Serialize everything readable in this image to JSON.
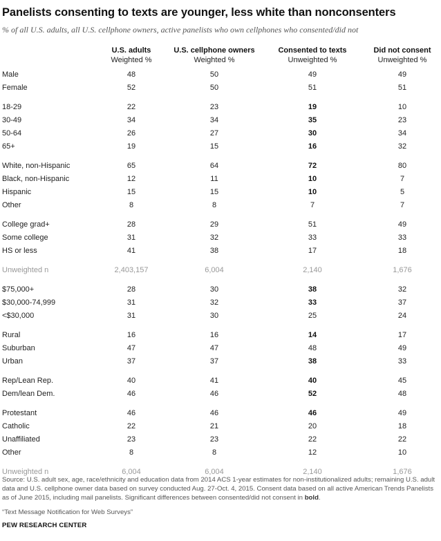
{
  "title": "Panelists consenting to texts are younger, less white than nonconsenters",
  "subtitle": "% of all U.S. adults, all U.S. cellphone owners, active panelists who own cellphones who consented/did not",
  "columns": [
    {
      "label": "U.S. adults",
      "sub": "Weighted %"
    },
    {
      "label": "U.S. cellphone owners",
      "sub": "Weighted %"
    },
    {
      "label": "Consented to texts",
      "sub": "Unweighted %"
    },
    {
      "label": "Did not consent",
      "sub": "Unweighted %"
    }
  ],
  "groups": [
    {
      "rows": [
        {
          "label": "Male",
          "values": [
            "48",
            "50",
            "49",
            "49"
          ],
          "bold": false
        },
        {
          "label": "Female",
          "values": [
            "52",
            "50",
            "51",
            "51"
          ],
          "bold": false
        }
      ]
    },
    {
      "rows": [
        {
          "label": "18-29",
          "values": [
            "22",
            "23",
            "19",
            "10"
          ],
          "bold": true
        },
        {
          "label": "30-49",
          "values": [
            "34",
            "34",
            "35",
            "23"
          ],
          "bold": true
        },
        {
          "label": "50-64",
          "values": [
            "26",
            "27",
            "30",
            "34"
          ],
          "bold": true
        },
        {
          "label": "65+",
          "values": [
            "19",
            "15",
            "16",
            "32"
          ],
          "bold": true
        }
      ]
    },
    {
      "rows": [
        {
          "label": "White, non-Hispanic",
          "values": [
            "65",
            "64",
            "72",
            "80"
          ],
          "bold": true
        },
        {
          "label": "Black, non-Hispanic",
          "values": [
            "12",
            "11",
            "10",
            "7"
          ],
          "bold": true
        },
        {
          "label": "Hispanic",
          "values": [
            "15",
            "15",
            "10",
            "5"
          ],
          "bold": true
        },
        {
          "label": "Other",
          "values": [
            "8",
            "8",
            "7",
            "7"
          ],
          "bold": false
        }
      ]
    },
    {
      "rows": [
        {
          "label": "College grad+",
          "values": [
            "28",
            "29",
            "51",
            "49"
          ],
          "bold": false
        },
        {
          "label": "Some college",
          "values": [
            "31",
            "32",
            "33",
            "33"
          ],
          "bold": false
        },
        {
          "label": "HS or less",
          "values": [
            "41",
            "38",
            "17",
            "18"
          ],
          "bold": false
        }
      ]
    },
    {
      "n": true,
      "rows": [
        {
          "label": "Unweighted n",
          "values": [
            "2,403,157",
            "6,004",
            "2,140",
            "1,676"
          ],
          "bold": false
        }
      ]
    },
    {
      "rows": [
        {
          "label": "$75,000+",
          "values": [
            "28",
            "30",
            "38",
            "32"
          ],
          "bold": true
        },
        {
          "label": "$30,000-74,999",
          "values": [
            "31",
            "32",
            "33",
            "37"
          ],
          "bold": true
        },
        {
          "label": "<$30,000",
          "values": [
            "31",
            "30",
            "25",
            "24"
          ],
          "bold": false
        }
      ]
    },
    {
      "rows": [
        {
          "label": "Rural",
          "values": [
            "16",
            "16",
            "14",
            "17"
          ],
          "bold": true
        },
        {
          "label": "Suburban",
          "values": [
            "47",
            "47",
            "48",
            "49"
          ],
          "bold": false
        },
        {
          "label": "Urban",
          "values": [
            "37",
            "37",
            "38",
            "33"
          ],
          "bold": true
        }
      ]
    },
    {
      "rows": [
        {
          "label": "Rep/Lean Rep.",
          "values": [
            "40",
            "41",
            "40",
            "45"
          ],
          "bold": true
        },
        {
          "label": "Dem/lean Dem.",
          "values": [
            "46",
            "46",
            "52",
            "48"
          ],
          "bold": true
        }
      ]
    },
    {
      "rows": [
        {
          "label": "Protestant",
          "values": [
            "46",
            "46",
            "46",
            "49"
          ],
          "bold": true
        },
        {
          "label": "Catholic",
          "values": [
            "22",
            "21",
            "20",
            "18"
          ],
          "bold": false
        },
        {
          "label": "Unaffiliated",
          "values": [
            "23",
            "23",
            "22",
            "22"
          ],
          "bold": false
        },
        {
          "label": "Other",
          "values": [
            "8",
            "8",
            "12",
            "10"
          ],
          "bold": false
        }
      ]
    },
    {
      "n": true,
      "rows": [
        {
          "label": "Unweighted n",
          "values": [
            "6,004",
            "6,004",
            "2,140",
            "1,676"
          ],
          "bold": false
        }
      ]
    }
  ],
  "source_text": "Source: U.S. adult sex, age, race/ethnicity and education data from 2014 ACS 1-year estimates for non-institutionalized adults; remaining U.S. adult data and U.S. cellphone owner data based on survey conducted Aug. 27-Oct. 4, 2015. Consent data based on all active American Trends Panelists as of June 2015, including mail panelists. Significant differences between consented/did not consent in ",
  "source_bold": "bold",
  "source_end": ".",
  "report_title": "“Text Message Notification for Web Surveys”",
  "organization": "PEW RESEARCH CENTER",
  "colors": {
    "text": "#222222",
    "muted": "#999999",
    "source": "#555555"
  }
}
